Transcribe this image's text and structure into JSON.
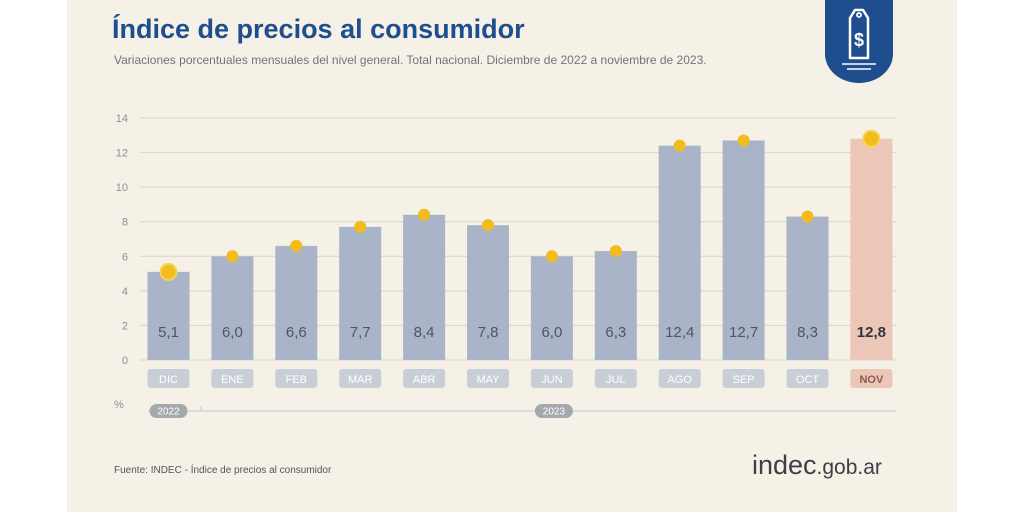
{
  "title": "Índice de precios al consumidor",
  "subtitle": "Variaciones porcentuales mensuales del nivel general. Total nacional. Diciembre de 2022 a noviembre de 2023.",
  "source": "Fuente: INDEC - Índice de precios al consumidor",
  "logo": {
    "main": "indec",
    "suffix": ".gob.ar"
  },
  "badge_icon": "price-tag-dollar-icon",
  "colors": {
    "bar": "#aab4c9",
    "highlight_bar": "#ecc6b6",
    "marker": "#f2bc1b",
    "title": "#1f4e8f",
    "badge": "#1f4e8f"
  },
  "chart_data": {
    "type": "bar",
    "title": "Índice de precios al consumidor",
    "ylabel": "%",
    "ylim": [
      0,
      14
    ],
    "yticks": [
      "0",
      "2",
      "4",
      "6",
      "8",
      "10",
      "12",
      "14"
    ],
    "grid": true,
    "categories": [
      "DIC",
      "ENE",
      "FEB",
      "MAR",
      "ABR",
      "MAY",
      "JUN",
      "JUL",
      "AGO",
      "SEP",
      "OCT",
      "NOV"
    ],
    "values": [
      5.1,
      6.0,
      6.6,
      7.7,
      8.4,
      7.8,
      6.0,
      6.3,
      12.4,
      12.7,
      8.3,
      12.8
    ],
    "value_labels": [
      "5,1",
      "6,0",
      "6,6",
      "7,7",
      "8,4",
      "7,8",
      "6,0",
      "6,3",
      "12,4",
      "12,7",
      "8,3",
      "12,8"
    ],
    "highlight_index": 11,
    "years": [
      {
        "label": "2022",
        "start": 0,
        "end": 0
      },
      {
        "label": "2023",
        "start": 1,
        "end": 11
      }
    ]
  }
}
